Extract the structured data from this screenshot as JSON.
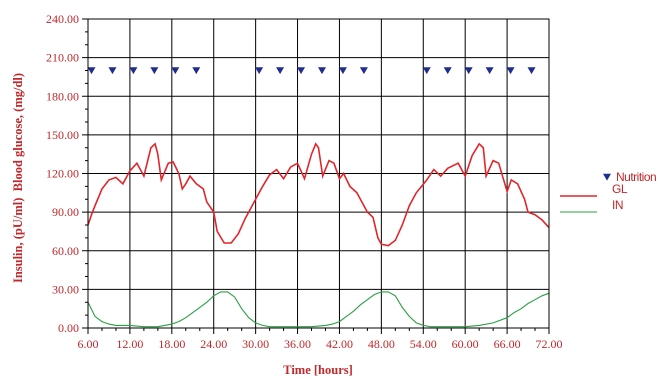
{
  "chart_data": {
    "type": "line",
    "title": "",
    "xlabel": "Time [hours]",
    "ylabel": "Insulin, (pU/ml)  Blood glucose, (mg/dl)",
    "xlim": [
      6,
      72
    ],
    "ylim": [
      0,
      240
    ],
    "x_ticks": [
      "6.00",
      "12.00",
      "18.00",
      "24.00",
      "30.00",
      "36.00",
      "42.00",
      "48.00",
      "54.00",
      "60.00",
      "66.00",
      "72.00"
    ],
    "y_ticks": [
      "0.00",
      "30.00",
      "60.00",
      "90.00",
      "120.00",
      "150.00",
      "180.00",
      "210.00",
      "240.00"
    ],
    "grid": true,
    "legend_position": "right",
    "series": [
      {
        "name": "Nutrition",
        "kind": "marker",
        "color": "#1f2d8c",
        "y": 200,
        "x": [
          6.5,
          9.5,
          12.5,
          15.5,
          18.5,
          21.5,
          30.5,
          33.5,
          36.5,
          39.5,
          42.5,
          45.5,
          54.5,
          57.5,
          60.5,
          63.5,
          66.5,
          69.5
        ]
      },
      {
        "name": "GL",
        "kind": "line",
        "color": "#e0262b",
        "points": [
          [
            6,
            80
          ],
          [
            6.5,
            88
          ],
          [
            7,
            95
          ],
          [
            8,
            108
          ],
          [
            9,
            115
          ],
          [
            10,
            117
          ],
          [
            11,
            112
          ],
          [
            12,
            122
          ],
          [
            13,
            128
          ],
          [
            14,
            118
          ],
          [
            15,
            140
          ],
          [
            15.6,
            143
          ],
          [
            16,
            135
          ],
          [
            16.5,
            115
          ],
          [
            17.5,
            128
          ],
          [
            18.2,
            129
          ],
          [
            19,
            120
          ],
          [
            19.5,
            108
          ],
          [
            20,
            112
          ],
          [
            20.6,
            118
          ],
          [
            21.5,
            112
          ],
          [
            22.5,
            108
          ],
          [
            23,
            98
          ],
          [
            24,
            90
          ],
          [
            24.5,
            75
          ],
          [
            25.5,
            66
          ],
          [
            26.5,
            66
          ],
          [
            27.5,
            73
          ],
          [
            28.5,
            85
          ],
          [
            29.5,
            95
          ],
          [
            31,
            110
          ],
          [
            32,
            119
          ],
          [
            33,
            123
          ],
          [
            34,
            116
          ],
          [
            35,
            125
          ],
          [
            36,
            128
          ],
          [
            37,
            116
          ],
          [
            38,
            135
          ],
          [
            38.6,
            143
          ],
          [
            39,
            140
          ],
          [
            39.6,
            118
          ],
          [
            40.5,
            130
          ],
          [
            41.2,
            128
          ],
          [
            42,
            116
          ],
          [
            42.6,
            120
          ],
          [
            43.5,
            110
          ],
          [
            44.5,
            105
          ],
          [
            45.5,
            95
          ],
          [
            46,
            90
          ],
          [
            46.8,
            86
          ],
          [
            47.5,
            70
          ],
          [
            48,
            65
          ],
          [
            49,
            64
          ],
          [
            50,
            68
          ],
          [
            51,
            80
          ],
          [
            52,
            95
          ],
          [
            53,
            105
          ],
          [
            54.5,
            115
          ],
          [
            55.5,
            123
          ],
          [
            56.5,
            118
          ],
          [
            57.5,
            124
          ],
          [
            59,
            128
          ],
          [
            60,
            118
          ],
          [
            61,
            134
          ],
          [
            62,
            143
          ],
          [
            62.6,
            140
          ],
          [
            63,
            118
          ],
          [
            64,
            130
          ],
          [
            64.8,
            128
          ],
          [
            66,
            106
          ],
          [
            66.6,
            115
          ],
          [
            67.5,
            112
          ],
          [
            68.5,
            100
          ],
          [
            69,
            90
          ],
          [
            70,
            88
          ],
          [
            71,
            84
          ],
          [
            72,
            78
          ]
        ]
      },
      {
        "name": "IN",
        "kind": "line",
        "color": "#2aa043",
        "points": [
          [
            6,
            20
          ],
          [
            7,
            9
          ],
          [
            8,
            5
          ],
          [
            9,
            3
          ],
          [
            10,
            2
          ],
          [
            11,
            2
          ],
          [
            12,
            2
          ],
          [
            14,
            1
          ],
          [
            16,
            1
          ],
          [
            17,
            2
          ],
          [
            18,
            3
          ],
          [
            19,
            5
          ],
          [
            20,
            8
          ],
          [
            21,
            12
          ],
          [
            22,
            16
          ],
          [
            23,
            20
          ],
          [
            24,
            25
          ],
          [
            25,
            28
          ],
          [
            26,
            28
          ],
          [
            27,
            24
          ],
          [
            28,
            15
          ],
          [
            29,
            8
          ],
          [
            30,
            4
          ],
          [
            31,
            2
          ],
          [
            32,
            1
          ],
          [
            34,
            1
          ],
          [
            36,
            1
          ],
          [
            38,
            1
          ],
          [
            40,
            2
          ],
          [
            41,
            3
          ],
          [
            42,
            5
          ],
          [
            43,
            9
          ],
          [
            44,
            13
          ],
          [
            45,
            18
          ],
          [
            46,
            22
          ],
          [
            47,
            26
          ],
          [
            48,
            28
          ],
          [
            49,
            28
          ],
          [
            50,
            25
          ],
          [
            51,
            16
          ],
          [
            52,
            9
          ],
          [
            53,
            4
          ],
          [
            54,
            2
          ],
          [
            55,
            1
          ],
          [
            57,
            1
          ],
          [
            60,
            1
          ],
          [
            62,
            2
          ],
          [
            64,
            4
          ],
          [
            66,
            8
          ],
          [
            67,
            12
          ],
          [
            68,
            15
          ],
          [
            69,
            19
          ],
          [
            70,
            22
          ],
          [
            71,
            25
          ],
          [
            72,
            27
          ]
        ]
      }
    ]
  }
}
